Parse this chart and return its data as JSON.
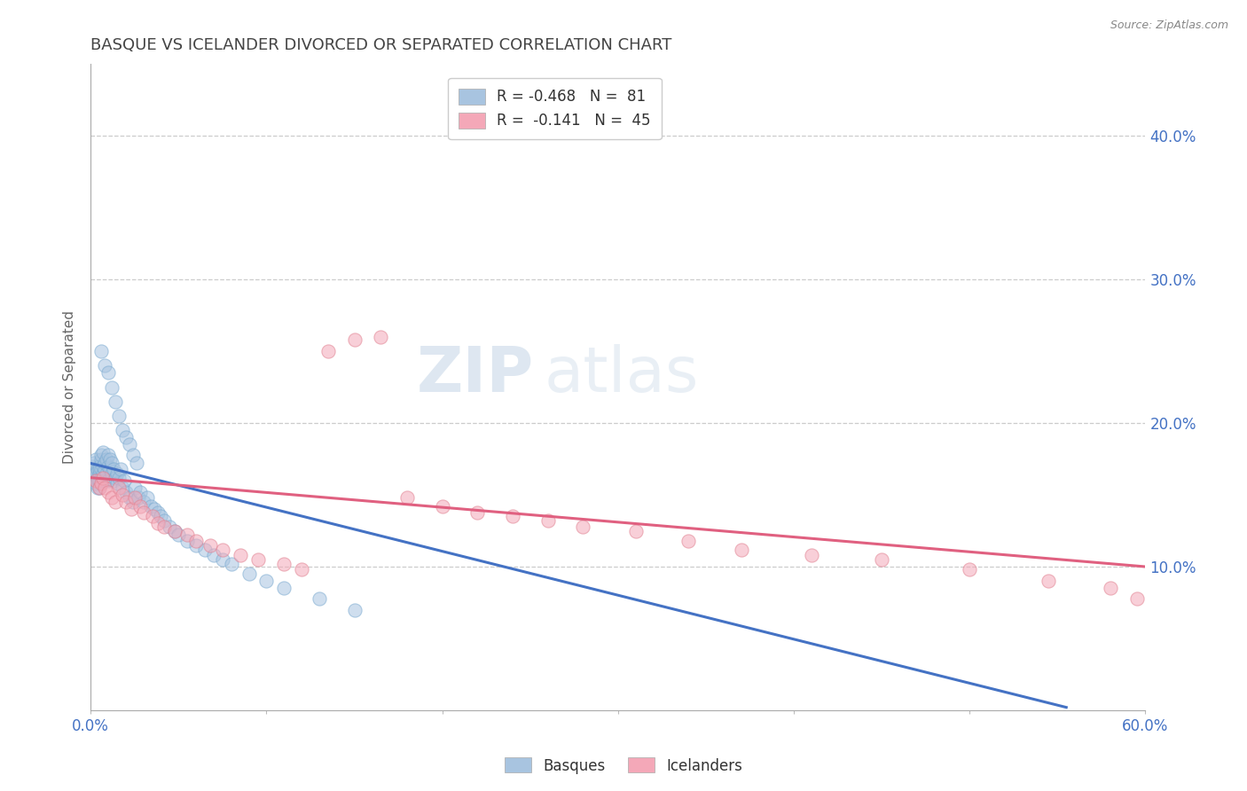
{
  "title": "BASQUE VS ICELANDER DIVORCED OR SEPARATED CORRELATION CHART",
  "source": "Source: ZipAtlas.com",
  "ylabel": "Divorced or Separated",
  "ytick_labels": [
    "10.0%",
    "20.0%",
    "30.0%",
    "40.0%"
  ],
  "ytick_values": [
    0.1,
    0.2,
    0.3,
    0.4
  ],
  "xlim": [
    0.0,
    0.6
  ],
  "ylim": [
    0.0,
    0.45
  ],
  "basque_color": "#a8c4e0",
  "icelander_color": "#f4a8b8",
  "trend_blue": "#4472c4",
  "trend_pink": "#e06080",
  "blue_trend_x": [
    0.0,
    0.555
  ],
  "blue_trend_y": [
    0.172,
    0.002
  ],
  "pink_trend_x": [
    0.0,
    0.6
  ],
  "pink_trend_y": [
    0.162,
    0.1
  ],
  "basques_x": [
    0.001,
    0.002,
    0.002,
    0.003,
    0.003,
    0.003,
    0.004,
    0.004,
    0.004,
    0.004,
    0.005,
    0.005,
    0.005,
    0.005,
    0.005,
    0.006,
    0.006,
    0.006,
    0.006,
    0.007,
    0.007,
    0.007,
    0.008,
    0.008,
    0.008,
    0.009,
    0.009,
    0.01,
    0.01,
    0.01,
    0.011,
    0.011,
    0.012,
    0.012,
    0.013,
    0.013,
    0.014,
    0.015,
    0.015,
    0.016,
    0.017,
    0.018,
    0.019,
    0.02,
    0.022,
    0.024,
    0.025,
    0.027,
    0.028,
    0.03,
    0.032,
    0.034,
    0.036,
    0.038,
    0.04,
    0.042,
    0.045,
    0.048,
    0.05,
    0.055,
    0.06,
    0.065,
    0.07,
    0.075,
    0.08,
    0.09,
    0.1,
    0.11,
    0.13,
    0.15,
    0.006,
    0.008,
    0.01,
    0.012,
    0.014,
    0.016,
    0.018,
    0.02,
    0.022,
    0.024,
    0.026
  ],
  "basques_y": [
    0.17,
    0.165,
    0.172,
    0.158,
    0.165,
    0.175,
    0.16,
    0.168,
    0.155,
    0.162,
    0.165,
    0.17,
    0.155,
    0.16,
    0.168,
    0.162,
    0.168,
    0.175,
    0.178,
    0.165,
    0.17,
    0.18,
    0.168,
    0.172,
    0.16,
    0.175,
    0.165,
    0.17,
    0.178,
    0.16,
    0.168,
    0.175,
    0.165,
    0.172,
    0.16,
    0.168,
    0.162,
    0.165,
    0.158,
    0.162,
    0.168,
    0.155,
    0.16,
    0.152,
    0.148,
    0.145,
    0.155,
    0.148,
    0.152,
    0.145,
    0.148,
    0.142,
    0.14,
    0.138,
    0.135,
    0.132,
    0.128,
    0.125,
    0.122,
    0.118,
    0.115,
    0.112,
    0.108,
    0.105,
    0.102,
    0.095,
    0.09,
    0.085,
    0.078,
    0.07,
    0.25,
    0.24,
    0.235,
    0.225,
    0.215,
    0.205,
    0.195,
    0.19,
    0.185,
    0.178,
    0.172
  ],
  "icelanders_x": [
    0.003,
    0.005,
    0.006,
    0.007,
    0.008,
    0.01,
    0.012,
    0.014,
    0.016,
    0.018,
    0.02,
    0.023,
    0.025,
    0.028,
    0.03,
    0.035,
    0.038,
    0.042,
    0.048,
    0.055,
    0.06,
    0.068,
    0.075,
    0.085,
    0.095,
    0.11,
    0.12,
    0.135,
    0.15,
    0.165,
    0.18,
    0.2,
    0.22,
    0.24,
    0.26,
    0.28,
    0.31,
    0.34,
    0.37,
    0.41,
    0.45,
    0.5,
    0.545,
    0.58,
    0.595
  ],
  "icelanders_y": [
    0.16,
    0.155,
    0.158,
    0.162,
    0.155,
    0.152,
    0.148,
    0.145,
    0.155,
    0.15,
    0.145,
    0.14,
    0.148,
    0.142,
    0.138,
    0.135,
    0.13,
    0.128,
    0.125,
    0.122,
    0.118,
    0.115,
    0.112,
    0.108,
    0.105,
    0.102,
    0.098,
    0.25,
    0.258,
    0.26,
    0.148,
    0.142,
    0.138,
    0.135,
    0.132,
    0.128,
    0.125,
    0.118,
    0.112,
    0.108,
    0.105,
    0.098,
    0.09,
    0.085,
    0.078
  ]
}
